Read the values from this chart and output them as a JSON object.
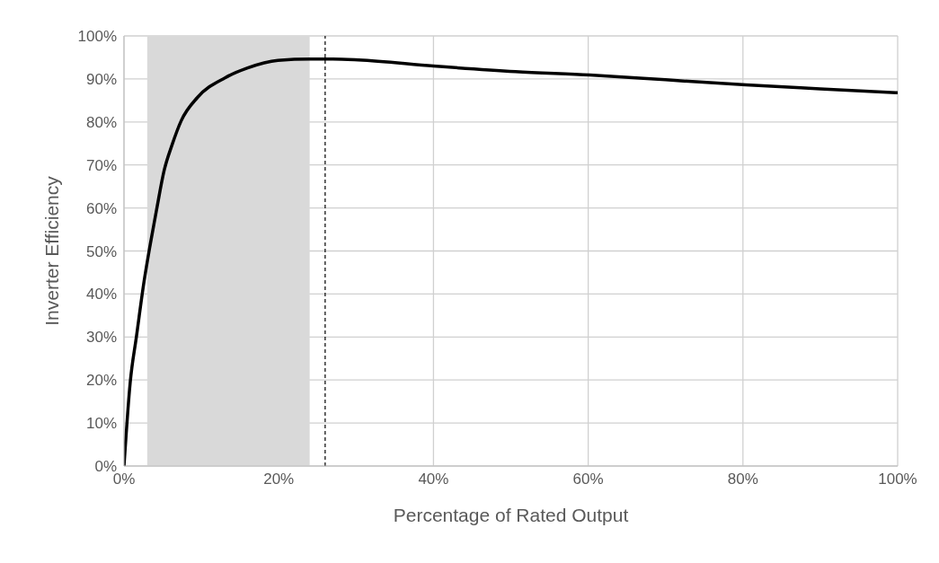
{
  "chart_data": {
    "type": "line",
    "xlabel": "Percentage of Rated Output",
    "ylabel": "Inverter Efficiency",
    "series": [
      {
        "color": "#000000",
        "x": [
          0,
          0.8,
          1.6,
          2.6,
          3.4,
          4.2,
          5.2,
          6.2,
          7.4,
          9.5,
          13.1,
          15.9,
          19.9,
          24.1,
          27,
          30.3,
          40,
          50.6,
          60.2,
          70,
          80.4,
          90,
          100
        ],
        "values": [
          0,
          19.4,
          30,
          43,
          51.6,
          59.5,
          68.8,
          74.6,
          80.3,
          85.7,
          90.3,
          92.5,
          94.3,
          94.6,
          94.6,
          94.4,
          93,
          91.7,
          90.9,
          89.8,
          88.6,
          87.7,
          86.8
        ]
      }
    ],
    "xlim": [
      0,
      100
    ],
    "xticks": [
      {
        "value": 0,
        "label": "0%"
      },
      {
        "value": 20,
        "label": "20%"
      },
      {
        "value": 40,
        "label": "40%"
      },
      {
        "value": 60,
        "label": "60%"
      },
      {
        "value": 80,
        "label": "80%"
      },
      {
        "value": 100,
        "label": "100%"
      }
    ],
    "ylim": [
      0,
      100
    ],
    "yticks": [
      {
        "value": 0,
        "label": "0%"
      },
      {
        "value": 10,
        "label": "10%"
      },
      {
        "value": 20,
        "label": "20%"
      },
      {
        "value": 30,
        "label": "30%"
      },
      {
        "value": 40,
        "label": "40%"
      },
      {
        "value": 50,
        "label": "50%"
      },
      {
        "value": 60,
        "label": "60%"
      },
      {
        "value": 70,
        "label": "70%"
      },
      {
        "value": 80,
        "label": "80%"
      },
      {
        "value": 90,
        "label": "90%"
      },
      {
        "value": 100,
        "label": "100%"
      }
    ],
    "bands": [
      {
        "axis": "x",
        "from": 3,
        "to": 24,
        "color": "#d9d9d9"
      }
    ],
    "ref_lines": [
      {
        "axis": "x",
        "value": 26,
        "color": "#000000",
        "line_style": "dashed"
      }
    ],
    "grid": true,
    "marker": "none",
    "line_style": "solid",
    "legend": false
  }
}
